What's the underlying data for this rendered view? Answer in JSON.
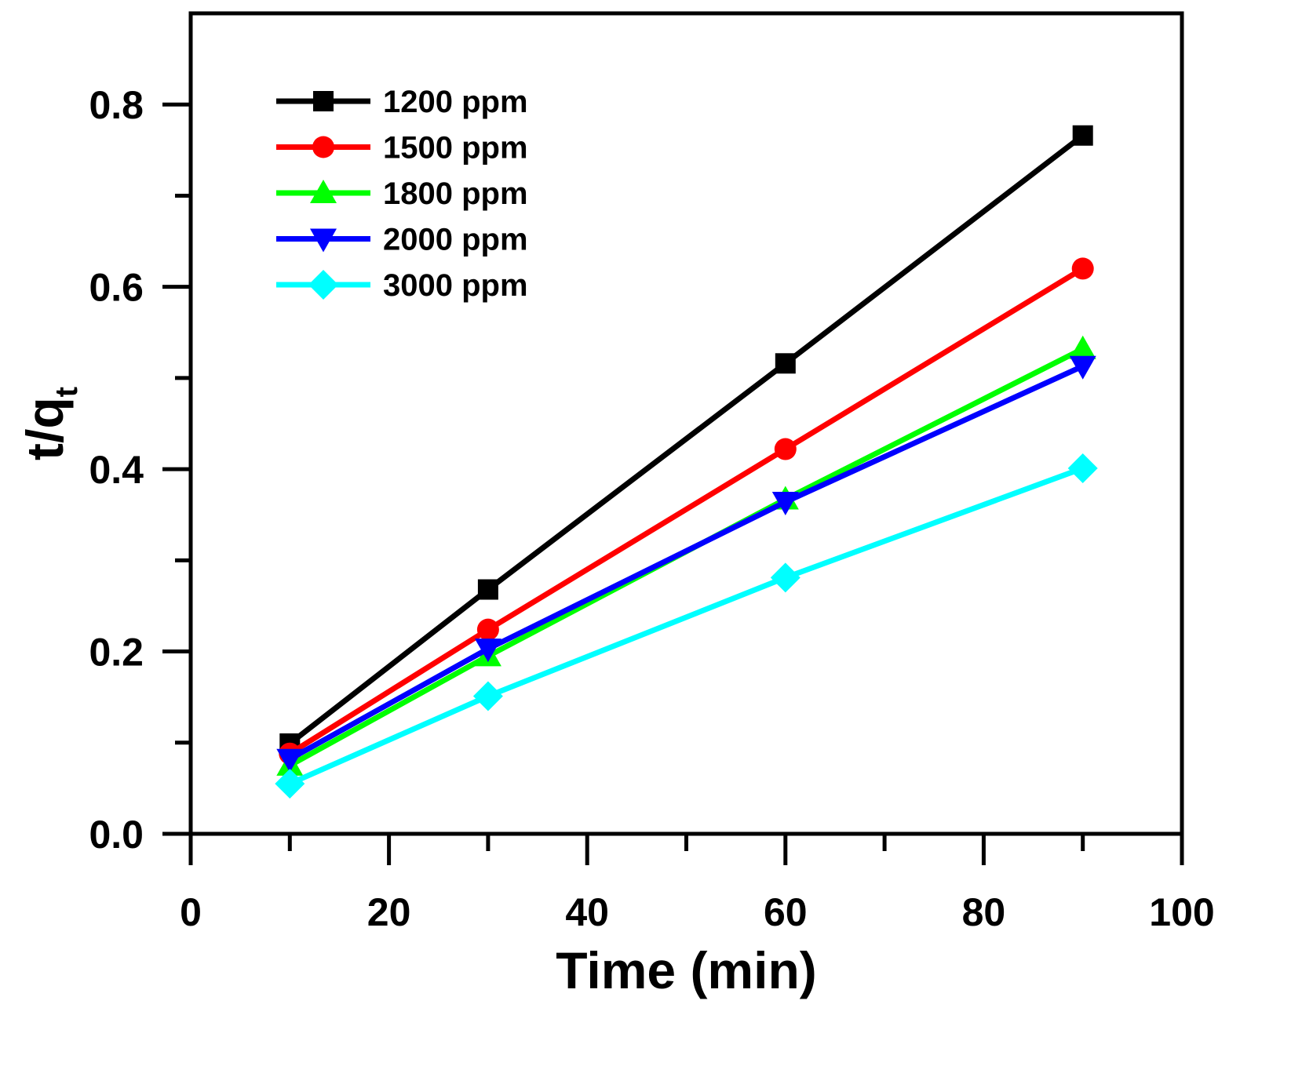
{
  "chart_data": {
    "type": "line",
    "title": "",
    "xlabel": "Time (min)",
    "ylabel": {
      "main": "t/q",
      "subscript": "t"
    },
    "xlim": [
      0,
      100
    ],
    "ylim": [
      0,
      0.9
    ],
    "x_major_ticks": [
      0,
      20,
      40,
      60,
      80,
      100
    ],
    "x_minor_ticks": [
      10,
      30,
      50,
      70,
      90
    ],
    "y_major_ticks": [
      0.0,
      0.2,
      0.4,
      0.6,
      0.8
    ],
    "y_minor_ticks": [
      0.1,
      0.3,
      0.5,
      0.7
    ],
    "x_tick_labels": [
      "0",
      "20",
      "40",
      "60",
      "80",
      "100"
    ],
    "y_tick_labels": [
      "0.0",
      "0.2",
      "0.4",
      "0.6",
      "0.8"
    ],
    "grid": false,
    "legend_position": "top-left",
    "x": [
      10,
      30,
      60,
      90
    ],
    "series": [
      {
        "name": "1200 ppm",
        "color": "#000000",
        "marker": "square",
        "values": [
          0.099,
          0.268,
          0.516,
          0.766
        ]
      },
      {
        "name": "1500 ppm",
        "color": "#ff0000",
        "marker": "circle",
        "values": [
          0.088,
          0.224,
          0.422,
          0.62
        ]
      },
      {
        "name": "1800 ppm",
        "color": "#00ff00",
        "marker": "triangle-up",
        "values": [
          0.075,
          0.195,
          0.367,
          0.532
        ]
      },
      {
        "name": "2000 ppm",
        "color": "#0000ff",
        "marker": "triangle-down",
        "values": [
          0.082,
          0.203,
          0.364,
          0.513
        ]
      },
      {
        "name": "3000 ppm",
        "color": "#00ffff",
        "marker": "diamond",
        "values": [
          0.055,
          0.151,
          0.281,
          0.401
        ]
      }
    ]
  }
}
